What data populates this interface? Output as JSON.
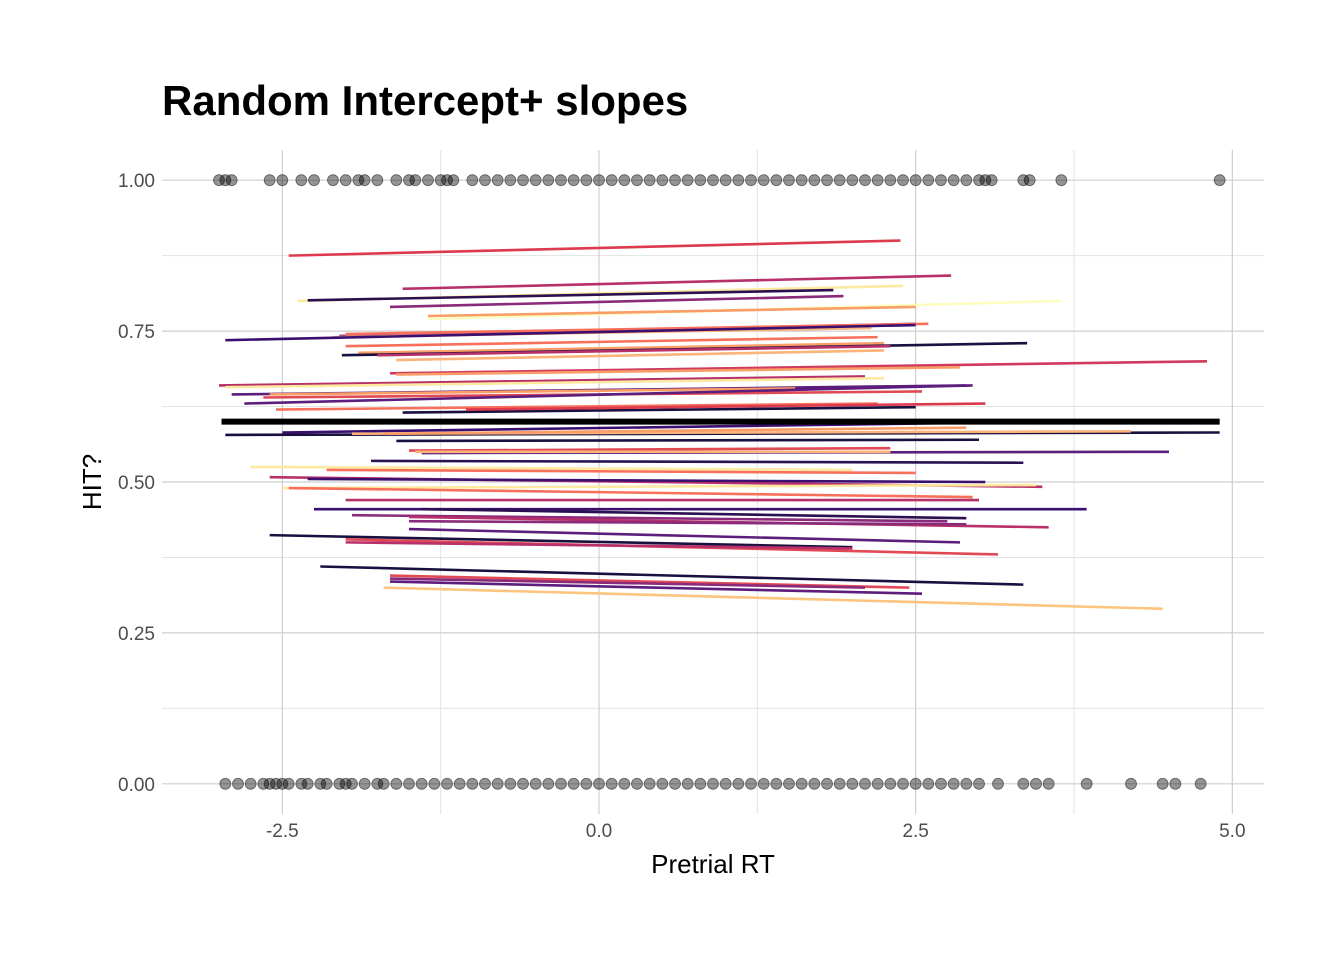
{
  "chart_data": {
    "type": "scatter",
    "title": "Random Intercept+ slopes",
    "xlabel": "Pretrial RT",
    "ylabel": "HIT?",
    "xlim": [
      -3.45,
      5.25
    ],
    "ylim": [
      -0.05,
      1.05
    ],
    "x_ticks": [
      -2.5,
      0.0,
      2.5,
      5.0
    ],
    "x_tick_labels": [
      "-2.5",
      "0.0",
      "2.5",
      "5.0"
    ],
    "y_ticks": [
      0.0,
      0.25,
      0.5,
      0.75,
      1.0
    ],
    "y_tick_labels": [
      "0.00",
      "0.25",
      "0.50",
      "0.75",
      "1.00"
    ],
    "grid": true,
    "point_color": "#000000",
    "fixed_effect_color": "#000000",
    "points_hit_1": [
      -3.0,
      -2.95,
      -2.9,
      -2.6,
      -2.5,
      -2.35,
      -2.25,
      -2.1,
      -2.0,
      -1.9,
      -1.85,
      -1.75,
      -1.6,
      -1.5,
      -1.45,
      -1.35,
      -1.25,
      -1.2,
      -1.15,
      -1.0,
      -0.9,
      -0.8,
      -0.7,
      -0.6,
      -0.5,
      -0.4,
      -0.3,
      -0.2,
      -0.1,
      0.0,
      0.1,
      0.2,
      0.3,
      0.4,
      0.5,
      0.6,
      0.7,
      0.8,
      0.9,
      1.0,
      1.1,
      1.2,
      1.3,
      1.4,
      1.5,
      1.6,
      1.7,
      1.8,
      1.9,
      2.0,
      2.1,
      2.2,
      2.3,
      2.4,
      2.5,
      2.6,
      2.7,
      2.8,
      2.9,
      3.0,
      3.05,
      3.1,
      3.35,
      3.4,
      3.65,
      4.9
    ],
    "points_hit_0": [
      -2.95,
      -2.85,
      -2.75,
      -2.65,
      -2.6,
      -2.55,
      -2.5,
      -2.45,
      -2.35,
      -2.3,
      -2.2,
      -2.15,
      -2.05,
      -2.0,
      -1.95,
      -1.85,
      -1.75,
      -1.7,
      -1.6,
      -1.5,
      -1.4,
      -1.3,
      -1.2,
      -1.1,
      -1.0,
      -0.9,
      -0.8,
      -0.7,
      -0.6,
      -0.5,
      -0.4,
      -0.3,
      -0.2,
      -0.1,
      0.0,
      0.1,
      0.2,
      0.3,
      0.4,
      0.5,
      0.6,
      0.7,
      0.8,
      0.9,
      1.0,
      1.1,
      1.2,
      1.3,
      1.4,
      1.5,
      1.6,
      1.7,
      1.8,
      1.9,
      2.0,
      2.1,
      2.2,
      2.3,
      2.4,
      2.5,
      2.6,
      2.7,
      2.8,
      2.9,
      3.0,
      3.15,
      3.35,
      3.45,
      3.55,
      3.85,
      4.2,
      4.45,
      4.55,
      4.75
    ],
    "fixed_effect_line": {
      "x": [
        -2.98,
        4.9
      ],
      "y": [
        0.6,
        0.6
      ]
    },
    "series": [
      {
        "x": [
          -2.45,
          2.38
        ],
        "y": [
          0.875,
          0.9
        ],
        "color": "#dd3a4e"
      },
      {
        "x": [
          -1.55,
          2.78
        ],
        "y": [
          0.82,
          0.842
        ],
        "color": "#b8306a"
      },
      {
        "x": [
          -2.38,
          2.4
        ],
        "y": [
          0.8,
          0.825
        ],
        "color": "#fde9a0"
      },
      {
        "x": [
          -2.3,
          1.85
        ],
        "y": [
          0.801,
          0.818
        ],
        "color": "#2a1050"
      },
      {
        "x": [
          -1.65,
          1.93
        ],
        "y": [
          0.79,
          0.808
        ],
        "color": "#8a2a7a"
      },
      {
        "x": [
          -1.35,
          3.65
        ],
        "y": [
          0.77,
          0.8
        ],
        "color": "#fcfdbf"
      },
      {
        "x": [
          -1.35,
          2.5
        ],
        "y": [
          0.775,
          0.79
        ],
        "color": "#fa9e68"
      },
      {
        "x": [
          -2.05,
          2.5
        ],
        "y": [
          0.742,
          0.762
        ],
        "color": "#8a2a7a"
      },
      {
        "x": [
          -2.0,
          2.6
        ],
        "y": [
          0.745,
          0.762
        ],
        "color": "#f7705c"
      },
      {
        "x": [
          -2.1,
          2.15
        ],
        "y": [
          0.74,
          0.755
        ],
        "color": "#fcb47a"
      },
      {
        "x": [
          -2.95,
          2.5
        ],
        "y": [
          0.735,
          0.76
        ],
        "color": "#3b0f70"
      },
      {
        "x": [
          -2.0,
          2.2
        ],
        "y": [
          0.725,
          0.74
        ],
        "color": "#f7705c"
      },
      {
        "x": [
          -1.9,
          2.25
        ],
        "y": [
          0.714,
          0.73
        ],
        "color": "#fa9e68"
      },
      {
        "x": [
          -2.03,
          3.38
        ],
        "y": [
          0.71,
          0.73
        ],
        "color": "#1a1040"
      },
      {
        "x": [
          -1.75,
          2.3
        ],
        "y": [
          0.71,
          0.725
        ],
        "color": "#b8306a"
      },
      {
        "x": [
          -1.6,
          2.25
        ],
        "y": [
          0.702,
          0.718
        ],
        "color": "#fcb47a"
      },
      {
        "x": [
          -1.65,
          4.8
        ],
        "y": [
          0.68,
          0.7
        ],
        "color": "#d03a5d"
      },
      {
        "x": [
          -1.6,
          2.85
        ],
        "y": [
          0.678,
          0.69
        ],
        "color": "#fa9e68"
      },
      {
        "x": [
          -3.0,
          2.1
        ],
        "y": [
          0.66,
          0.675
        ],
        "color": "#b8306a"
      },
      {
        "x": [
          -2.95,
          2.25
        ],
        "y": [
          0.657,
          0.672
        ],
        "color": "#fde9a0"
      },
      {
        "x": [
          -2.9,
          2.9
        ],
        "y": [
          0.645,
          0.66
        ],
        "color": "#5c1d7c"
      },
      {
        "x": [
          -2.6,
          1.55
        ],
        "y": [
          0.645,
          0.655
        ],
        "color": "#fa9e68"
      },
      {
        "x": [
          -2.65,
          2.55
        ],
        "y": [
          0.64,
          0.65
        ],
        "color": "#e04a55"
      },
      {
        "x": [
          -2.8,
          2.95
        ],
        "y": [
          0.63,
          0.66
        ],
        "color": "#5c1d7c"
      },
      {
        "x": [
          -2.55,
          2.2
        ],
        "y": [
          0.62,
          0.63
        ],
        "color": "#f7705c"
      },
      {
        "x": [
          -1.55,
          2.5
        ],
        "y": [
          0.615,
          0.624
        ],
        "color": "#1a1040"
      },
      {
        "x": [
          -1.05,
          3.05
        ],
        "y": [
          0.62,
          0.63
        ],
        "color": "#dd3a4e"
      },
      {
        "x": [
          -2.5,
          2.9
        ],
        "y": [
          0.582,
          0.598
        ],
        "color": "#3b0f70"
      },
      {
        "x": [
          -2.95,
          4.9
        ],
        "y": [
          0.578,
          0.582
        ],
        "color": "#1a1040"
      },
      {
        "x": [
          -1.95,
          4.2
        ],
        "y": [
          0.58,
          0.584
        ],
        "color": "#fcb47a"
      },
      {
        "x": [
          -1.7,
          2.9
        ],
        "y": [
          0.58,
          0.59
        ],
        "color": "#fa9e68"
      },
      {
        "x": [
          -1.6,
          3.0
        ],
        "y": [
          0.568,
          0.57
        ],
        "color": "#1a1040"
      },
      {
        "x": [
          -1.5,
          2.3
        ],
        "y": [
          0.552,
          0.556
        ],
        "color": "#e04a55"
      },
      {
        "x": [
          -1.4,
          4.5
        ],
        "y": [
          0.548,
          0.55
        ],
        "color": "#5c1d7c"
      },
      {
        "x": [
          -1.45,
          2.3
        ],
        "y": [
          0.55,
          0.55
        ],
        "color": "#fcb47a"
      },
      {
        "x": [
          -1.8,
          3.35
        ],
        "y": [
          0.535,
          0.532
        ],
        "color": "#2a1050"
      },
      {
        "x": [
          -2.75,
          2.0
        ],
        "y": [
          0.525,
          0.52
        ],
        "color": "#fde9a0"
      },
      {
        "x": [
          -2.15,
          2.5
        ],
        "y": [
          0.52,
          0.515
        ],
        "color": "#f7705c"
      },
      {
        "x": [
          -2.6,
          3.5
        ],
        "y": [
          0.508,
          0.492
        ],
        "color": "#b8306a"
      },
      {
        "x": [
          -2.3,
          3.05
        ],
        "y": [
          0.505,
          0.5
        ],
        "color": "#3b0f70"
      },
      {
        "x": [
          -2.5,
          3.45
        ],
        "y": [
          0.49,
          0.495
        ],
        "color": "#fde9a0"
      },
      {
        "x": [
          -2.45,
          2.95
        ],
        "y": [
          0.49,
          0.475
        ],
        "color": "#f7705c"
      },
      {
        "x": [
          -2.0,
          3.0
        ],
        "y": [
          0.47,
          0.47
        ],
        "color": "#b8306a"
      },
      {
        "x": [
          -2.25,
          3.85
        ],
        "y": [
          0.455,
          0.455
        ],
        "color": "#3b0f70"
      },
      {
        "x": [
          -1.4,
          2.9
        ],
        "y": [
          0.455,
          0.44
        ],
        "color": "#2a1050"
      },
      {
        "x": [
          -1.95,
          2.75
        ],
        "y": [
          0.445,
          0.435
        ],
        "color": "#8a2a7a"
      },
      {
        "x": [
          -1.5,
          3.55
        ],
        "y": [
          0.442,
          0.425
        ],
        "color": "#b8306a"
      },
      {
        "x": [
          -1.5,
          2.9
        ],
        "y": [
          0.435,
          0.43
        ],
        "color": "#8a2a7a"
      },
      {
        "x": [
          -1.5,
          2.85
        ],
        "y": [
          0.422,
          0.4
        ],
        "color": "#5c1d7c"
      },
      {
        "x": [
          -2.6,
          2.0
        ],
        "y": [
          0.412,
          0.392
        ],
        "color": "#1a1040"
      },
      {
        "x": [
          -2.0,
          3.15
        ],
        "y": [
          0.405,
          0.38
        ],
        "color": "#e04a55"
      },
      {
        "x": [
          -2.0,
          2.0
        ],
        "y": [
          0.4,
          0.39
        ],
        "color": "#b8306a"
      },
      {
        "x": [
          -2.2,
          3.35
        ],
        "y": [
          0.36,
          0.33
        ],
        "color": "#1a1040"
      },
      {
        "x": [
          -1.65,
          2.45
        ],
        "y": [
          0.345,
          0.325
        ],
        "color": "#e04a55"
      },
      {
        "x": [
          -1.65,
          2.1
        ],
        "y": [
          0.34,
          0.325
        ],
        "color": "#8a2a7a"
      },
      {
        "x": [
          -1.65,
          2.55
        ],
        "y": [
          0.335,
          0.315
        ],
        "color": "#5c1d7c"
      },
      {
        "x": [
          -1.7,
          4.45
        ],
        "y": [
          0.325,
          0.29
        ],
        "color": "#fcc47e"
      }
    ]
  }
}
